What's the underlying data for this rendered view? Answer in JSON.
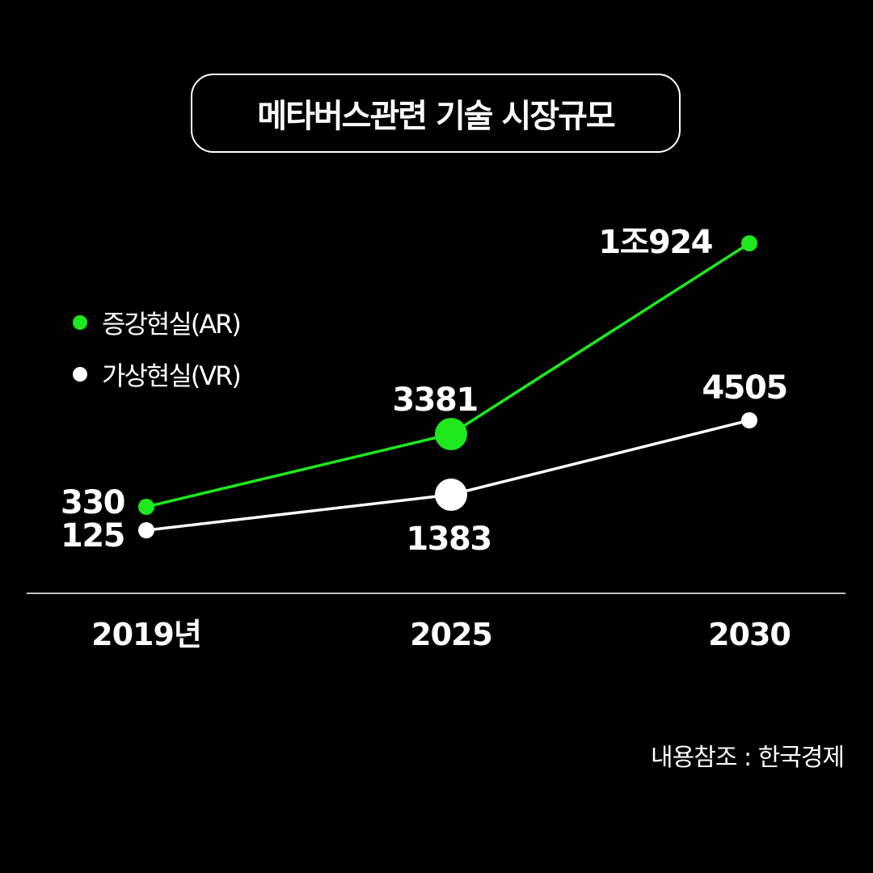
{
  "title": "메타버스관련 기술 시장규모",
  "legend": [
    {
      "label": "증강현실(AR)",
      "color": "#1ee81e"
    },
    {
      "label": "가상현실(VR)",
      "color": "#ffffff"
    }
  ],
  "source": "내용참조 : 한국경제",
  "chart_data": {
    "type": "line",
    "categories": [
      "2019년",
      "2025",
      "2030"
    ],
    "series": [
      {
        "name": "증강현실(AR)",
        "color": "#1ee81e",
        "values": [
          330,
          3381,
          10924
        ],
        "labels": [
          "330",
          "3381",
          "1조924"
        ]
      },
      {
        "name": "가상현실(VR)",
        "color": "#ffffff",
        "values": [
          125,
          1383,
          4505
        ],
        "labels": [
          "125",
          "1383",
          "4505"
        ]
      }
    ],
    "highlight_index": 1,
    "grid": false,
    "legend_position": "left",
    "colors": {
      "background": "#000000",
      "axis": "#ffffff"
    }
  }
}
